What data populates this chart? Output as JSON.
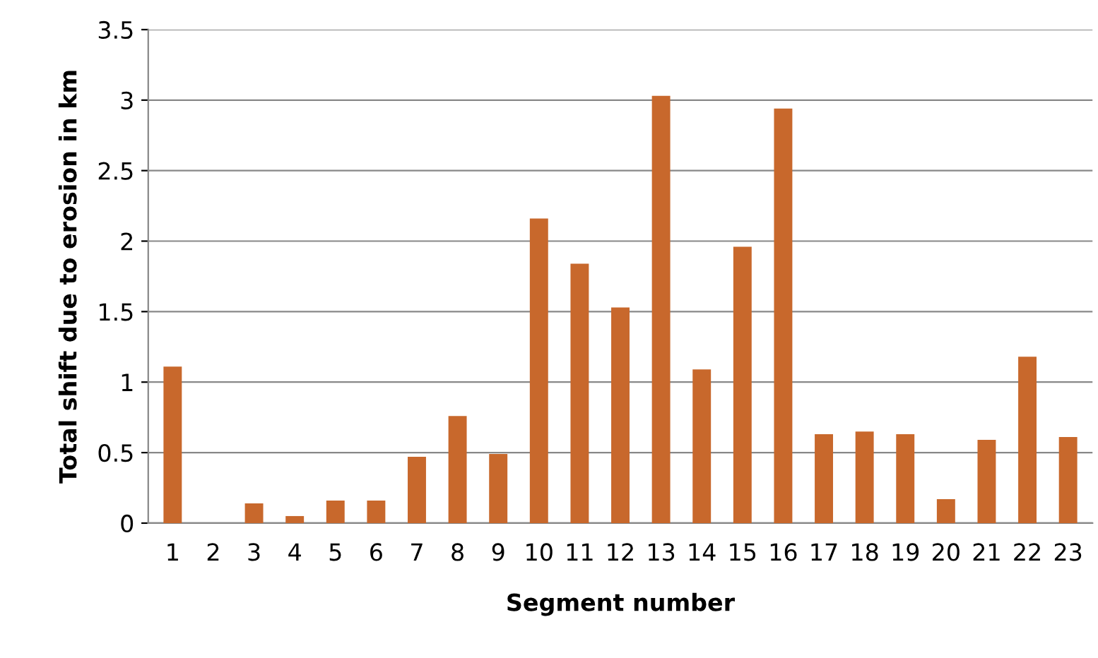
{
  "chart_data": {
    "type": "bar",
    "xlabel": "Segment number",
    "ylabel": "Total shift due to erosion in km",
    "categories": [
      "1",
      "2",
      "3",
      "4",
      "5",
      "6",
      "7",
      "8",
      "9",
      "10",
      "11",
      "12",
      "13",
      "14",
      "15",
      "16",
      "17",
      "18",
      "19",
      "20",
      "21",
      "22",
      "23"
    ],
    "values": [
      1.11,
      0,
      0.14,
      0.05,
      0.16,
      0.16,
      0.47,
      0.76,
      0.49,
      2.16,
      1.84,
      1.53,
      3.03,
      1.09,
      1.96,
      2.94,
      0.63,
      0.65,
      0.63,
      0.17,
      0.59,
      1.18,
      0.61
    ],
    "color": "#c8682c",
    "ylim": [
      0,
      3.5
    ],
    "yticks": [
      0,
      0.5,
      1,
      1.5,
      2,
      2.5,
      3,
      3.5
    ],
    "grid": "y",
    "legend": false
  }
}
